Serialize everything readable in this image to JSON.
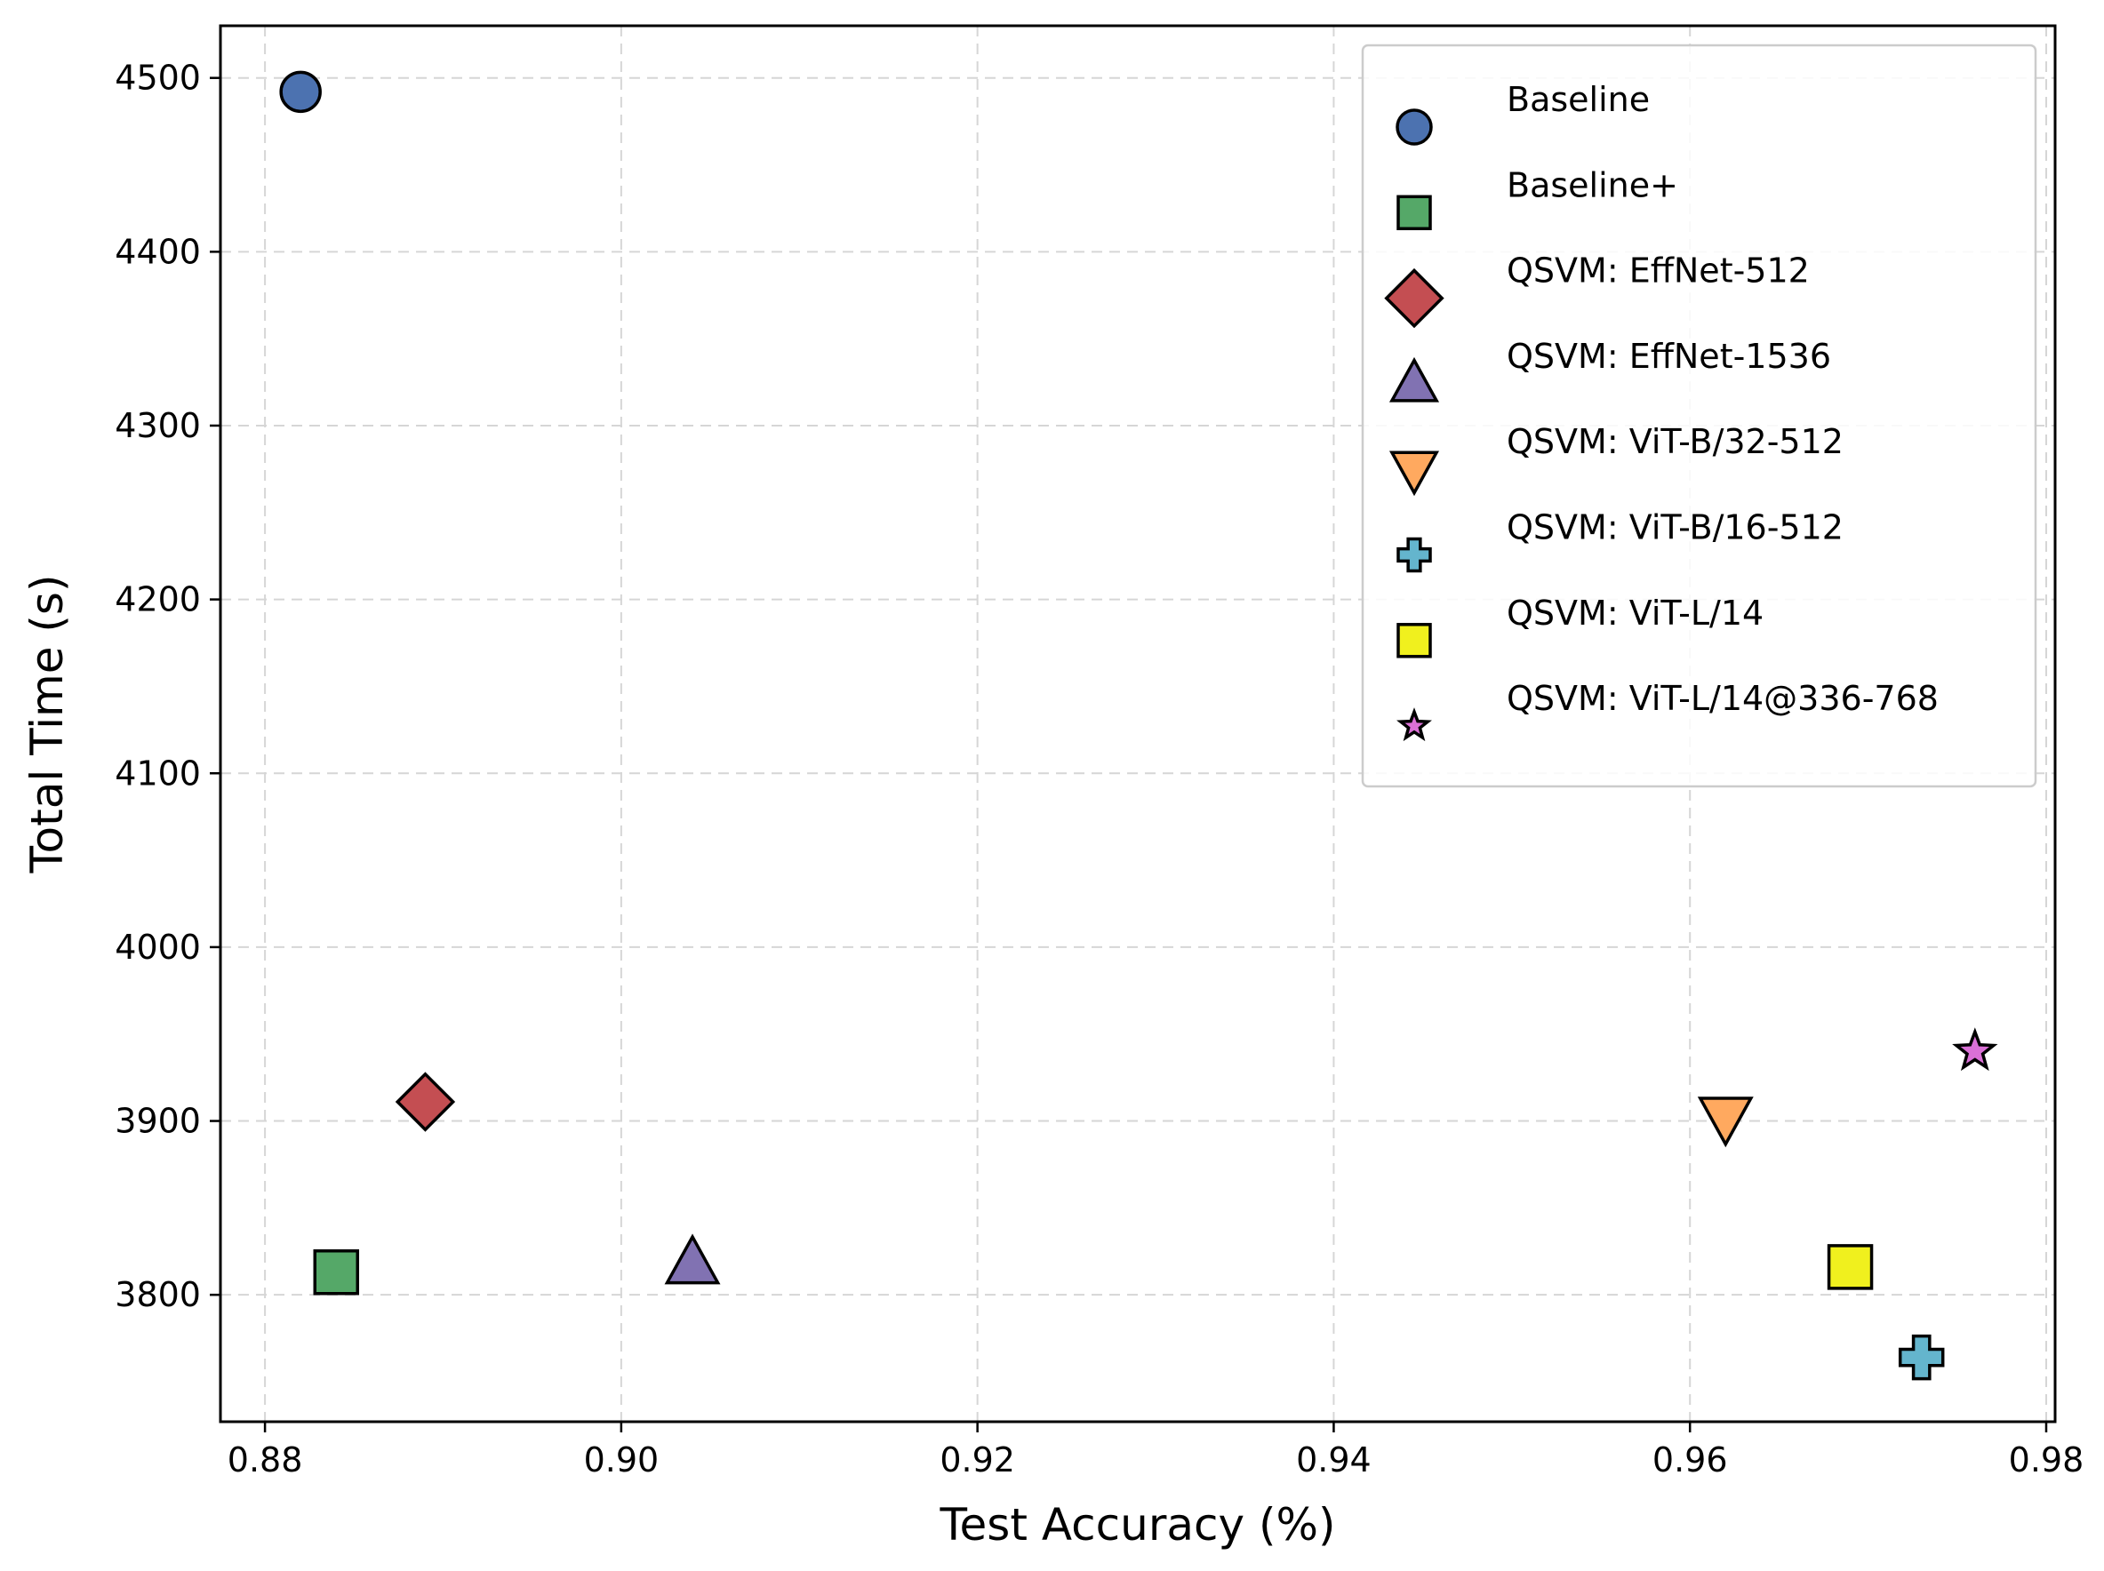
{
  "chart_data": {
    "type": "scatter",
    "title": "",
    "xlabel": "Test Accuracy (%)",
    "ylabel": "Total Time (s)",
    "xlim": [
      0.8775,
      0.9805
    ],
    "ylim": [
      3727,
      4530
    ],
    "x_ticks": [
      0.88,
      0.9,
      0.92,
      0.94,
      0.96,
      0.98
    ],
    "x_tick_labels": [
      "0.88",
      "0.90",
      "0.92",
      "0.94",
      "0.96",
      "0.98"
    ],
    "y_ticks": [
      3800,
      3900,
      4000,
      4100,
      4200,
      4300,
      4400,
      4500
    ],
    "y_tick_labels": [
      "3800",
      "3900",
      "4000",
      "4100",
      "4200",
      "4300",
      "4400",
      "4500"
    ],
    "grid": true,
    "legend_position": "top-right",
    "series": [
      {
        "name": "Baseline",
        "marker": "circle",
        "color": "#4C72B0",
        "x": 0.882,
        "y": 4492
      },
      {
        "name": "Baseline+",
        "marker": "square",
        "color": "#55A868",
        "x": 0.884,
        "y": 3813
      },
      {
        "name": "QSVM: EffNet-512",
        "marker": "diamond",
        "color": "#C44E52",
        "x": 0.889,
        "y": 3911
      },
      {
        "name": "QSVM: EffNet-1536",
        "marker": "triangle-up",
        "color": "#8172B2",
        "x": 0.904,
        "y": 3818
      },
      {
        "name": "QSVM: ViT-B/32-512",
        "marker": "triangle-down",
        "color": "#FFA95F",
        "x": 0.962,
        "y": 3902
      },
      {
        "name": "QSVM: ViT-B/16-512",
        "marker": "plus",
        "color": "#64B5CD",
        "x": 0.973,
        "y": 3764
      },
      {
        "name": "QSVM: ViT-L/14",
        "marker": "square",
        "color": "#F0F01E",
        "x": 0.969,
        "y": 3816
      },
      {
        "name": "QSVM: ViT-L/14@336-768",
        "marker": "star",
        "color": "#DA70D6",
        "x": 0.976,
        "y": 3940
      }
    ]
  }
}
